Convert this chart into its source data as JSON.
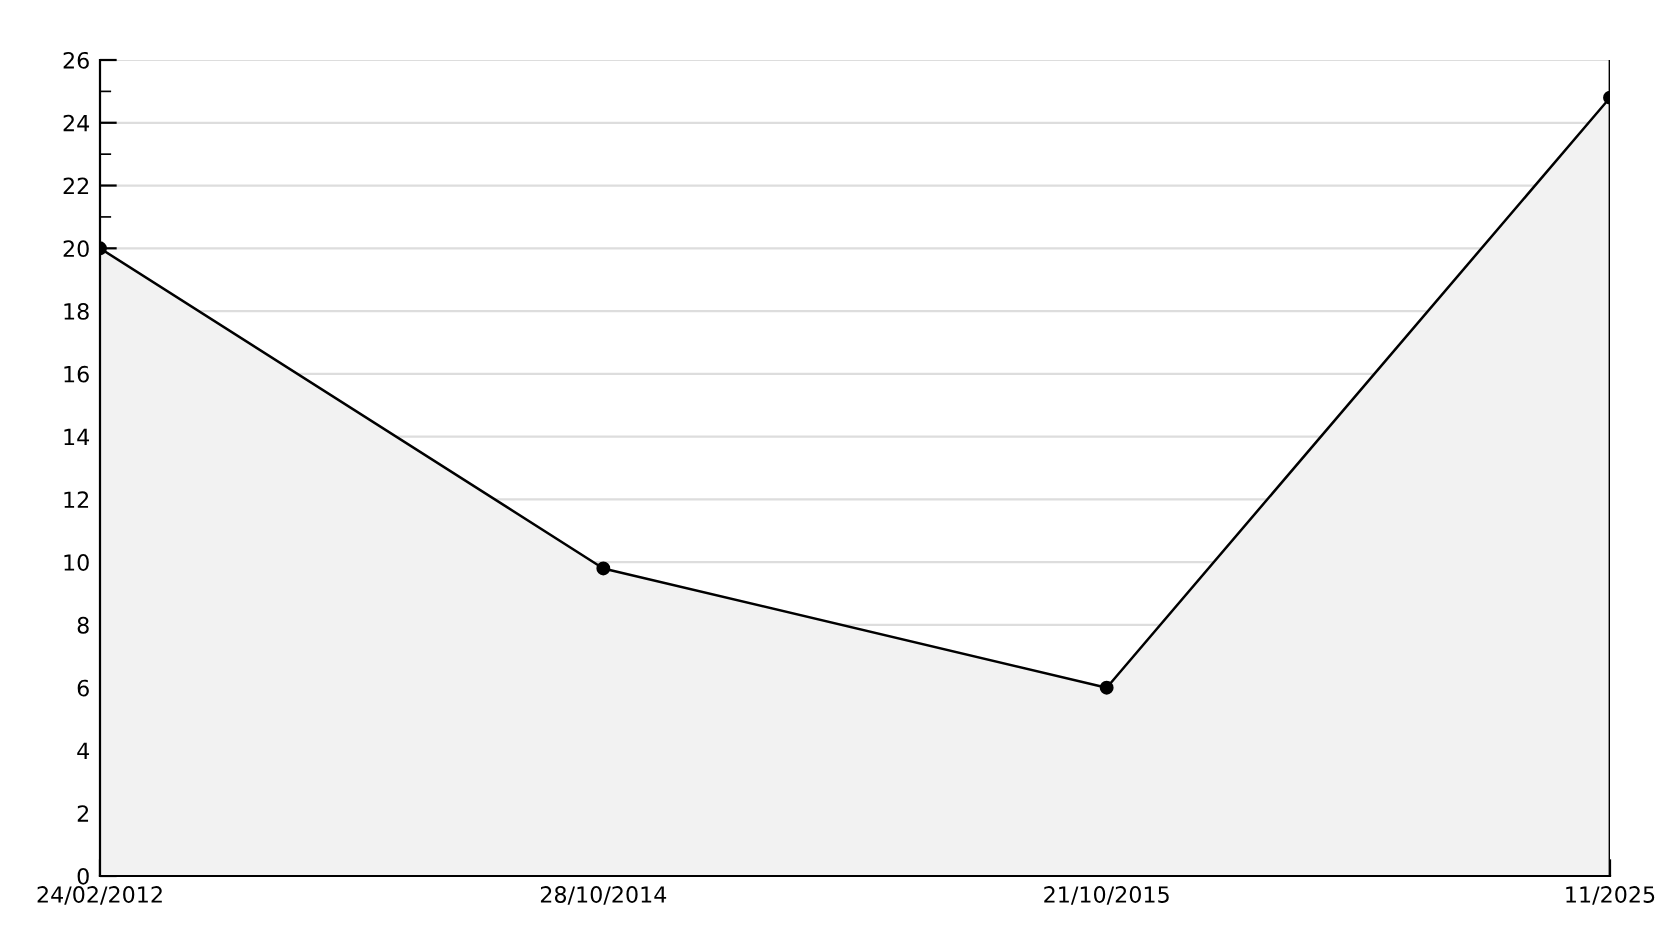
{
  "chart_data": {
    "type": "area",
    "categories": [
      "24/02/2012",
      "28/10/2014",
      "21/10/2015",
      "11/2025"
    ],
    "series": [
      {
        "color": "#000000",
        "values": [
          20,
          9.8,
          6,
          24.8
        ]
      }
    ],
    "ylim": [
      0,
      26
    ],
    "yticks": [
      0,
      2,
      4,
      6,
      8,
      10,
      12,
      14,
      16,
      18,
      20,
      22,
      24,
      26
    ],
    "grid": "y",
    "marker": "circle",
    "line_style": "solid",
    "legend": false
  }
}
